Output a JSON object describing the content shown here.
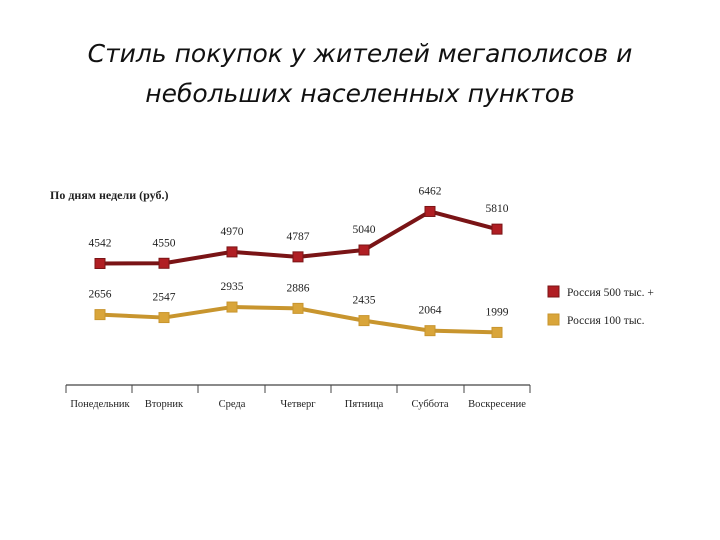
{
  "slide": {
    "title_line1": "Стиль покупок у жителей мегаполисов и",
    "title_line2": "небольших населенных пунктов"
  },
  "chart_data": {
    "type": "line",
    "title": "По дням недели (руб.)",
    "categories": [
      "Понедельник",
      "Вторник",
      "Среда",
      "Четверг",
      "Пятница",
      "Суббота",
      "Воскресение"
    ],
    "series": [
      {
        "name": "Россия 500 тыс. +",
        "values": [
          4542,
          4550,
          4970,
          4787,
          5040,
          6462,
          5810
        ],
        "color": "#7a1416",
        "marker_color": "#b01e23"
      },
      {
        "name": "Россия 100 тыс.",
        "values": [
          2656,
          2547,
          2935,
          2886,
          2435,
          2064,
          1999
        ],
        "color": "#c8952e",
        "marker_color": "#d9a53a"
      }
    ],
    "legend": "right",
    "grid": false
  }
}
